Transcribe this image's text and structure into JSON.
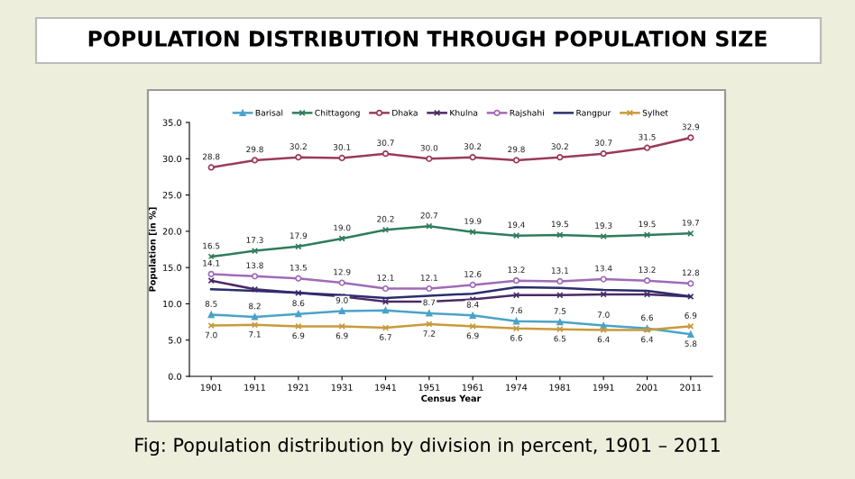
{
  "chart_data": {
    "type": "line",
    "title": "POPULATION DISTRIBUTION THROUGH POPULATION SIZE",
    "xlabel": "Census Year",
    "ylabel": "Population [in %]",
    "annotations": [
      "Fig: Population distribution by division in percent, 1901 – 2011"
    ],
    "categories": [
      "1901",
      "1911",
      "1921",
      "1931",
      "1941",
      "1951",
      "1961",
      "1974",
      "1981",
      "1991",
      "2001",
      "2011"
    ],
    "ylim": [
      0,
      35
    ],
    "yticks": [
      {
        "value": 0,
        "label": "0.0"
      },
      {
        "value": 5,
        "label": "5.0"
      },
      {
        "value": 10,
        "label": "10.0"
      },
      {
        "value": 15,
        "label": "15.0"
      },
      {
        "value": 20,
        "label": "20.0"
      },
      {
        "value": 25,
        "label": "25.0"
      },
      {
        "value": 30,
        "label": "30.0"
      },
      {
        "value": 35,
        "label": "35.0"
      }
    ],
    "legend": "top",
    "grid": false,
    "series": [
      {
        "name": "Barisal",
        "color": "#4aa3c8",
        "marker": "triangle",
        "values": [
          8.5,
          8.2,
          8.6,
          9.0,
          9.1,
          8.7,
          8.4,
          7.6,
          7.5,
          7.0,
          6.6,
          5.8
        ],
        "value_labels": [
          "8.5",
          "8.2",
          "8.6",
          "9.0",
          null,
          "8.7",
          "8.4",
          "7.6",
          "7.5",
          "7.0",
          "6.6",
          "5.8"
        ]
      },
      {
        "name": "Chittagong",
        "color": "#2e7d5b",
        "marker": "cross",
        "values": [
          16.5,
          17.3,
          17.9,
          19.0,
          20.2,
          20.7,
          19.9,
          19.4,
          19.5,
          19.3,
          19.5,
          19.7
        ],
        "value_labels": [
          "16.5",
          "17.3",
          "17.9",
          "19.0",
          "20.2",
          "20.7",
          "19.9",
          "19.4",
          "19.5",
          "19.3",
          "19.5",
          "19.7"
        ]
      },
      {
        "name": "Dhaka",
        "color": "#9b3a5a",
        "marker": "circle",
        "values": [
          28.8,
          29.8,
          30.2,
          30.1,
          30.7,
          30.0,
          30.2,
          29.8,
          30.2,
          30.7,
          31.5,
          32.9
        ],
        "value_labels": [
          "28.8",
          "29.8",
          "30.2",
          "30.1",
          "30.7",
          "30.0",
          "30.2",
          "29.8",
          "30.2",
          "30.7",
          "31.5",
          "32.9"
        ]
      },
      {
        "name": "Khulna",
        "color": "#4b2a66",
        "marker": "cross",
        "values": [
          13.2,
          12.0,
          11.5,
          11.0,
          10.3,
          10.3,
          10.6,
          11.2,
          11.2,
          11.3,
          11.3,
          11.0
        ]
      },
      {
        "name": "Rajshahi",
        "color": "#a06ab8",
        "marker": "circle",
        "values": [
          14.1,
          13.8,
          13.5,
          12.9,
          12.1,
          12.1,
          12.6,
          13.2,
          13.1,
          13.4,
          13.2,
          12.8
        ],
        "value_labels": [
          "14.1",
          "13.8",
          "13.5",
          "12.9",
          "12.1",
          "12.1",
          "12.6",
          "13.2",
          "13.1",
          "13.4",
          "13.2",
          "12.8"
        ]
      },
      {
        "name": "Rangpur",
        "color": "#2b2d6e",
        "marker": "none",
        "values": [
          12.0,
          11.8,
          11.5,
          11.2,
          10.8,
          11.1,
          11.4,
          12.3,
          12.2,
          11.9,
          11.8,
          11.0
        ]
      },
      {
        "name": "Sylhet",
        "color": "#c89a3a",
        "marker": "cross",
        "values": [
          7.0,
          7.1,
          6.9,
          6.9,
          6.7,
          7.2,
          6.9,
          6.6,
          6.5,
          6.4,
          6.4,
          6.9
        ],
        "value_labels": [
          "7.0",
          "7.1",
          "6.9",
          "6.9",
          "6.7",
          "7.2",
          "6.9",
          "6.6",
          "6.5",
          "6.4",
          "6.4",
          "6.9"
        ]
      }
    ]
  }
}
